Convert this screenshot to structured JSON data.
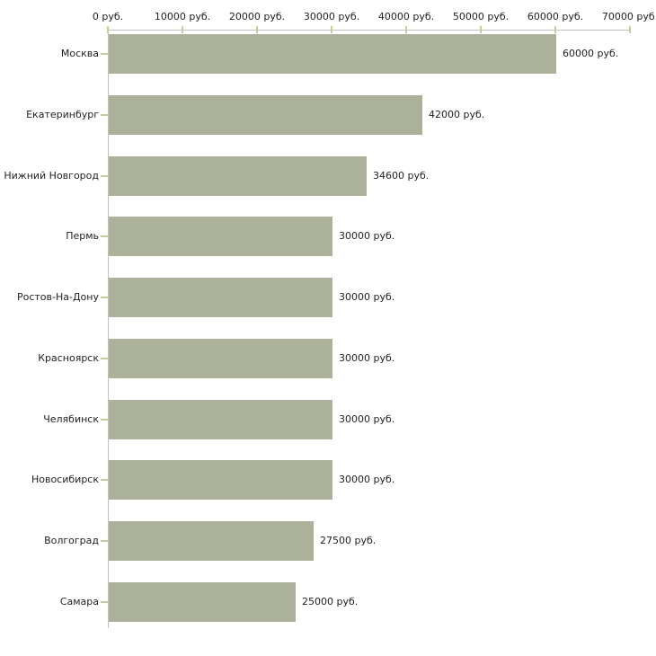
{
  "chart_data": {
    "type": "bar",
    "orientation": "horizontal",
    "title": "",
    "xlabel": "",
    "ylabel": "",
    "unit": "руб.",
    "xlim": [
      0,
      70000
    ],
    "grid": false,
    "legend": false,
    "x_ticks": [
      {
        "value": 0,
        "label": "0 руб."
      },
      {
        "value": 10000,
        "label": "10000 руб."
      },
      {
        "value": 20000,
        "label": "20000 руб."
      },
      {
        "value": 30000,
        "label": "30000 руб."
      },
      {
        "value": 40000,
        "label": "40000 руб."
      },
      {
        "value": 50000,
        "label": "50000 руб."
      },
      {
        "value": 60000,
        "label": "60000 руб."
      },
      {
        "value": 70000,
        "label": "70000 руб."
      }
    ],
    "rows": [
      {
        "category": "Москва",
        "value": 60000,
        "label": "60000 руб."
      },
      {
        "category": "Екатеринбург",
        "value": 42000,
        "label": "42000 руб."
      },
      {
        "category": "Нижний Новгород",
        "value": 34600,
        "label": "34600 руб."
      },
      {
        "category": "Пермь",
        "value": 30000,
        "label": "30000 руб."
      },
      {
        "category": "Ростов-На-Дону",
        "value": 30000,
        "label": "30000 руб."
      },
      {
        "category": "Красноярск",
        "value": 30000,
        "label": "30000 руб."
      },
      {
        "category": "Челябинск",
        "value": 30000,
        "label": "30000 руб."
      },
      {
        "category": "Новосибирск",
        "value": 30000,
        "label": "30000 руб."
      },
      {
        "category": "Волгоград",
        "value": 27500,
        "label": "27500 руб."
      },
      {
        "category": "Самара",
        "value": 25000,
        "label": "25000 руб."
      }
    ],
    "colors": {
      "bar": "#acb29a",
      "axis_line": "#c0c0c0",
      "tick": "#c9c99c",
      "text": "#1f1f1f",
      "background": "#ffffff"
    }
  }
}
